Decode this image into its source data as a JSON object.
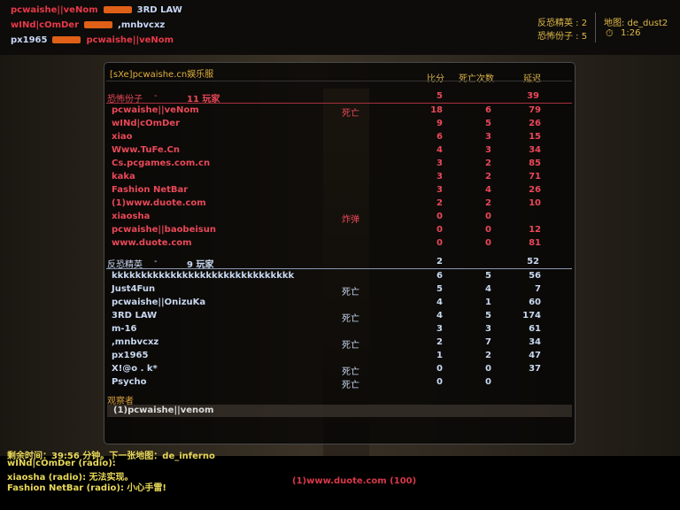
{
  "hud": {
    "ct_label": "反恐精英 : 2",
    "t_label": "恐怖份子 : 5",
    "map_label": "地图: de_dust2",
    "timer": "1:26",
    "timer_icon": "stopwatch-icon"
  },
  "killfeed": [
    {
      "killer": "pcwaishe||veNom",
      "weapon": "ak47-icon",
      "victim": "3RD LAW",
      "killer_team": "t",
      "victim_team": "ct"
    },
    {
      "killer": "wINd|cOmDer",
      "weapon": "pistol-icon",
      "victim": ",mnbvcxz",
      "killer_team": "t",
      "victim_team": "ct"
    },
    {
      "killer": "px1965",
      "weapon": "ak47-icon",
      "victim": "pcwaishe||veNom",
      "killer_team": "ct",
      "victim_team": "t"
    }
  ],
  "scoreboard": {
    "server_name": "[sXe]pcwaishe.cn娱乐服",
    "columns": {
      "score": "比分",
      "deaths": "死亡次数",
      "ping": "延迟"
    },
    "terrorists": {
      "label": "恐怖份子",
      "sep": "-",
      "count": "11 玩家",
      "score": "5",
      "ping": "39",
      "players": [
        {
          "name": "pcwaishe||veNom",
          "status": "死亡",
          "score": "18",
          "deaths": "6",
          "ping": "79"
        },
        {
          "name": "wINd|cOmDer",
          "status": "",
          "score": "9",
          "deaths": "5",
          "ping": "26"
        },
        {
          "name": "xiao",
          "status": "",
          "score": "6",
          "deaths": "3",
          "ping": "15"
        },
        {
          "name": "Www.TuFe.Cn",
          "status": "",
          "score": "4",
          "deaths": "3",
          "ping": "34"
        },
        {
          "name": "Cs.pcgames.com.cn",
          "status": "",
          "score": "3",
          "deaths": "2",
          "ping": "85"
        },
        {
          "name": "kaka",
          "status": "",
          "score": "3",
          "deaths": "2",
          "ping": "71"
        },
        {
          "name": "Fashion NetBar",
          "status": "",
          "score": "3",
          "deaths": "4",
          "ping": "26"
        },
        {
          "name": "(1)www.duote.com",
          "status": "",
          "score": "2",
          "deaths": "2",
          "ping": "10"
        },
        {
          "name": "xiaosha",
          "status": "炸弹",
          "score": "0",
          "deaths": "0",
          "ping": ""
        },
        {
          "name": "pcwaishe||baobeisun",
          "status": "",
          "score": "0",
          "deaths": "0",
          "ping": "12"
        },
        {
          "name": "www.duote.com",
          "status": "",
          "score": "0",
          "deaths": "0",
          "ping": "81"
        }
      ]
    },
    "counter_terrorists": {
      "label": "反恐精英",
      "sep": "-",
      "count": "9 玩家",
      "score": "2",
      "ping": "52",
      "players": [
        {
          "name": "kkkkkkkkkkkkkkkkkkkkkkkkkkkkkkk",
          "status": "",
          "score": "6",
          "deaths": "5",
          "ping": "56"
        },
        {
          "name": "Just4Fun",
          "status": "死亡",
          "score": "5",
          "deaths": "4",
          "ping": "7"
        },
        {
          "name": "pcwaishe||OnizuKa",
          "status": "",
          "score": "4",
          "deaths": "1",
          "ping": "60"
        },
        {
          "name": "3RD LAW",
          "status": "死亡",
          "score": "4",
          "deaths": "5",
          "ping": "174"
        },
        {
          "name": "m-16",
          "status": "",
          "score": "3",
          "deaths": "3",
          "ping": "61"
        },
        {
          "name": ",mnbvcxz",
          "status": "死亡",
          "score": "2",
          "deaths": "7",
          "ping": "34"
        },
        {
          "name": "px1965",
          "status": "",
          "score": "1",
          "deaths": "2",
          "ping": "47"
        },
        {
          "name": "X!@o . k*",
          "status": "死亡",
          "score": "0",
          "deaths": "0",
          "ping": "37"
        },
        {
          "name": "Psycho",
          "status": "死亡",
          "score": "0",
          "deaths": "0",
          "ping": ""
        }
      ]
    },
    "spectators_label": "观察者",
    "spectating": "(1)pcwaishe||venom"
  },
  "chat": [
    "剩余时间：39:56 分钟。下一张地图：de_inferno",
    "wINd|cOmDer (radio):",
    "xiaosha (radio): 无法实现。",
    "Fashion NetBar (radio): 小心手雷!"
  ],
  "spectator_target": "(1)www.duote.com (100)"
}
